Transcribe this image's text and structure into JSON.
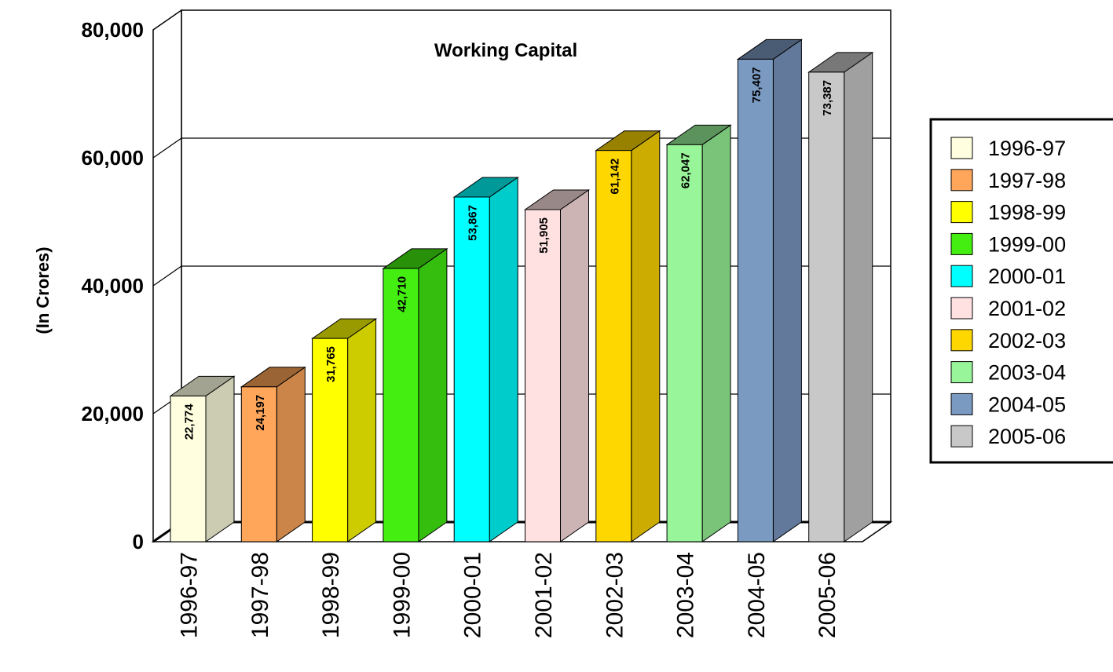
{
  "chart_data": {
    "type": "bar",
    "title": "Working Capital",
    "ylabel": "(In Crores)",
    "xlabel": "",
    "ylim": [
      0,
      80000
    ],
    "yticks": [
      0,
      20000,
      40000,
      60000,
      80000
    ],
    "ytick_labels": [
      "0",
      "20,000",
      "40,000",
      "60,000",
      "80,000"
    ],
    "grid": true,
    "style": "3d-bar",
    "legend_position": "right",
    "categories": [
      "1996-97",
      "1997-98",
      "1998-99",
      "1999-00",
      "2000-01",
      "2001-02",
      "2002-03",
      "2003-04",
      "2004-05",
      "2005-06"
    ],
    "values": [
      22774,
      24197,
      31765,
      42710,
      53867,
      51905,
      61142,
      62047,
      75407,
      73387
    ],
    "value_labels": [
      "22,774",
      "24,197",
      "31,765",
      "42,710",
      "53,867",
      "51,905",
      "61,142",
      "62,047",
      "75,407",
      "73,387"
    ],
    "colors": [
      "#FFFFE0",
      "#FFA65B",
      "#FFFF00",
      "#44EE11",
      "#00FFFF",
      "#FFE1E1",
      "#FFD700",
      "#99F599",
      "#7B9AC2",
      "#C8C8C8"
    ],
    "side_colors": [
      "#CCCCB3",
      "#CC8548",
      "#CCCC00",
      "#36BE0E",
      "#00CCCC",
      "#CCB4B4",
      "#CCAC00",
      "#7AC47A",
      "#62799B",
      "#A0A0A0"
    ],
    "top_colors": [
      "#A3A391",
      "#9B6435",
      "#999900",
      "#289009",
      "#009999",
      "#998888",
      "#998100",
      "#5C935C",
      "#4A5B74",
      "#787878"
    ]
  }
}
